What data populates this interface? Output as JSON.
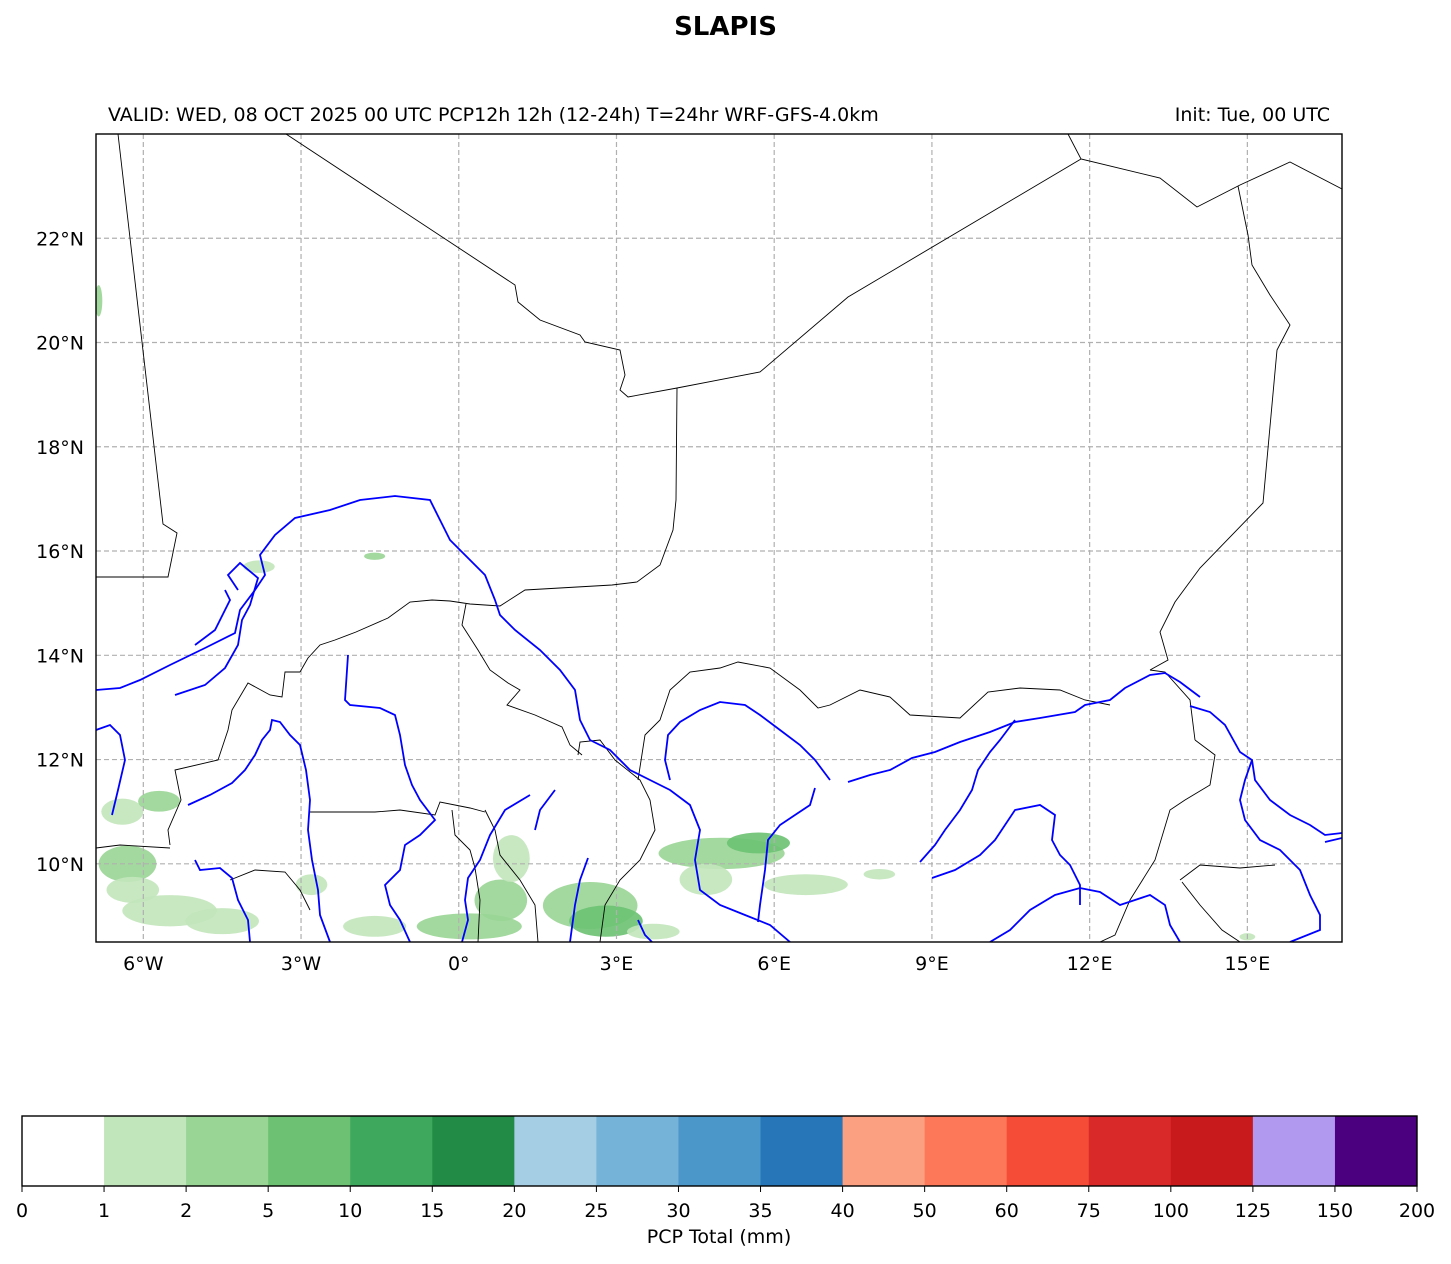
{
  "title": "SLAPIS",
  "subtitle_left": "VALID: WED, 08 OCT 2025 00 UTC  PCP12h 12h (12-24h) T=24hr WRF-GFS-4.0km",
  "subtitle_right": "Init: Tue, 00 UTC",
  "map": {
    "lon_range": [
      -6.9,
      16.8
    ],
    "lat_range": [
      8.5,
      24.0
    ],
    "lon_ticks": [
      {
        "value": -6,
        "label": "6°W"
      },
      {
        "value": -3,
        "label": "3°W"
      },
      {
        "value": 0,
        "label": "0°"
      },
      {
        "value": 3,
        "label": "3°E"
      },
      {
        "value": 6,
        "label": "6°E"
      },
      {
        "value": 9,
        "label": "9°E"
      },
      {
        "value": 12,
        "label": "12°E"
      },
      {
        "value": 15,
        "label": "15°E"
      }
    ],
    "lat_ticks": [
      {
        "value": 10,
        "label": "10°N"
      },
      {
        "value": 12,
        "label": "12°N"
      },
      {
        "value": 14,
        "label": "14°N"
      },
      {
        "value": 16,
        "label": "16°N"
      },
      {
        "value": 18,
        "label": "18°N"
      },
      {
        "value": 20,
        "label": "20°N"
      },
      {
        "value": 22,
        "label": "22°N"
      }
    ],
    "colors": {
      "border": "#000000",
      "river": "#0000ff",
      "grid": "#b0b0b0"
    }
  },
  "colorbar": {
    "label": "PCP Total (mm)",
    "ticks": [
      "0",
      "1",
      "2",
      "5",
      "10",
      "15",
      "20",
      "25",
      "30",
      "35",
      "40",
      "50",
      "60",
      "75",
      "100",
      "125",
      "150",
      "200"
    ],
    "colors": [
      "#ffffff",
      "#c2e6bb",
      "#99d595",
      "#6cc272",
      "#3ea95d",
      "#228b45",
      "#a5cde3",
      "#75b3d8",
      "#4b97c9",
      "#2676b8",
      "#fca082",
      "#fc7858",
      "#f44c37",
      "#da2929",
      "#c81a1c",
      "#b299f0",
      "#4b0080"
    ]
  },
  "precip": [
    {
      "lon": -6.3,
      "lat": 10.0,
      "rx": 0.55,
      "ry": 0.35,
      "level": 2
    },
    {
      "lon": -5.5,
      "lat": 9.1,
      "rx": 0.9,
      "ry": 0.3,
      "level": 1
    },
    {
      "lon": -4.5,
      "lat": 8.9,
      "rx": 0.7,
      "ry": 0.25,
      "level": 1
    },
    {
      "lon": -6.4,
      "lat": 11.0,
      "rx": 0.4,
      "ry": 0.25,
      "level": 1
    },
    {
      "lon": -5.7,
      "lat": 11.2,
      "rx": 0.4,
      "ry": 0.2,
      "level": 2
    },
    {
      "lon": -6.2,
      "lat": 9.5,
      "rx": 0.5,
      "ry": 0.25,
      "level": 1
    },
    {
      "lon": -2.8,
      "lat": 9.6,
      "rx": 0.3,
      "ry": 0.2,
      "level": 1
    },
    {
      "lon": -1.6,
      "lat": 8.8,
      "rx": 0.6,
      "ry": 0.2,
      "level": 1
    },
    {
      "lon": 0.2,
      "lat": 8.8,
      "rx": 1.0,
      "ry": 0.25,
      "level": 2
    },
    {
      "lon": 0.8,
      "lat": 9.3,
      "rx": 0.5,
      "ry": 0.4,
      "level": 2
    },
    {
      "lon": 1.0,
      "lat": 10.1,
      "rx": 0.35,
      "ry": 0.45,
      "level": 1
    },
    {
      "lon": 2.5,
      "lat": 9.2,
      "rx": 0.9,
      "ry": 0.45,
      "level": 2
    },
    {
      "lon": 2.8,
      "lat": 8.9,
      "rx": 0.7,
      "ry": 0.3,
      "level": 3
    },
    {
      "lon": 3.7,
      "lat": 8.7,
      "rx": 0.5,
      "ry": 0.15,
      "level": 1
    },
    {
      "lon": 5.0,
      "lat": 10.2,
      "rx": 1.2,
      "ry": 0.3,
      "level": 2
    },
    {
      "lon": 5.7,
      "lat": 10.4,
      "rx": 0.6,
      "ry": 0.2,
      "level": 3
    },
    {
      "lon": 4.7,
      "lat": 9.7,
      "rx": 0.5,
      "ry": 0.3,
      "level": 1
    },
    {
      "lon": 6.6,
      "lat": 9.6,
      "rx": 0.8,
      "ry": 0.2,
      "level": 1
    },
    {
      "lon": 8.0,
      "lat": 9.8,
      "rx": 0.3,
      "ry": 0.1,
      "level": 1
    },
    {
      "lon": -1.6,
      "lat": 15.9,
      "rx": 0.2,
      "ry": 0.07,
      "level": 2
    },
    {
      "lon": -6.85,
      "lat": 20.8,
      "rx": 0.07,
      "ry": 0.3,
      "level": 2
    },
    {
      "lon": -3.8,
      "lat": 15.7,
      "rx": 0.3,
      "ry": 0.12,
      "level": 1
    },
    {
      "lon": 15.0,
      "lat": 8.6,
      "rx": 0.15,
      "ry": 0.07,
      "level": 1
    }
  ]
}
